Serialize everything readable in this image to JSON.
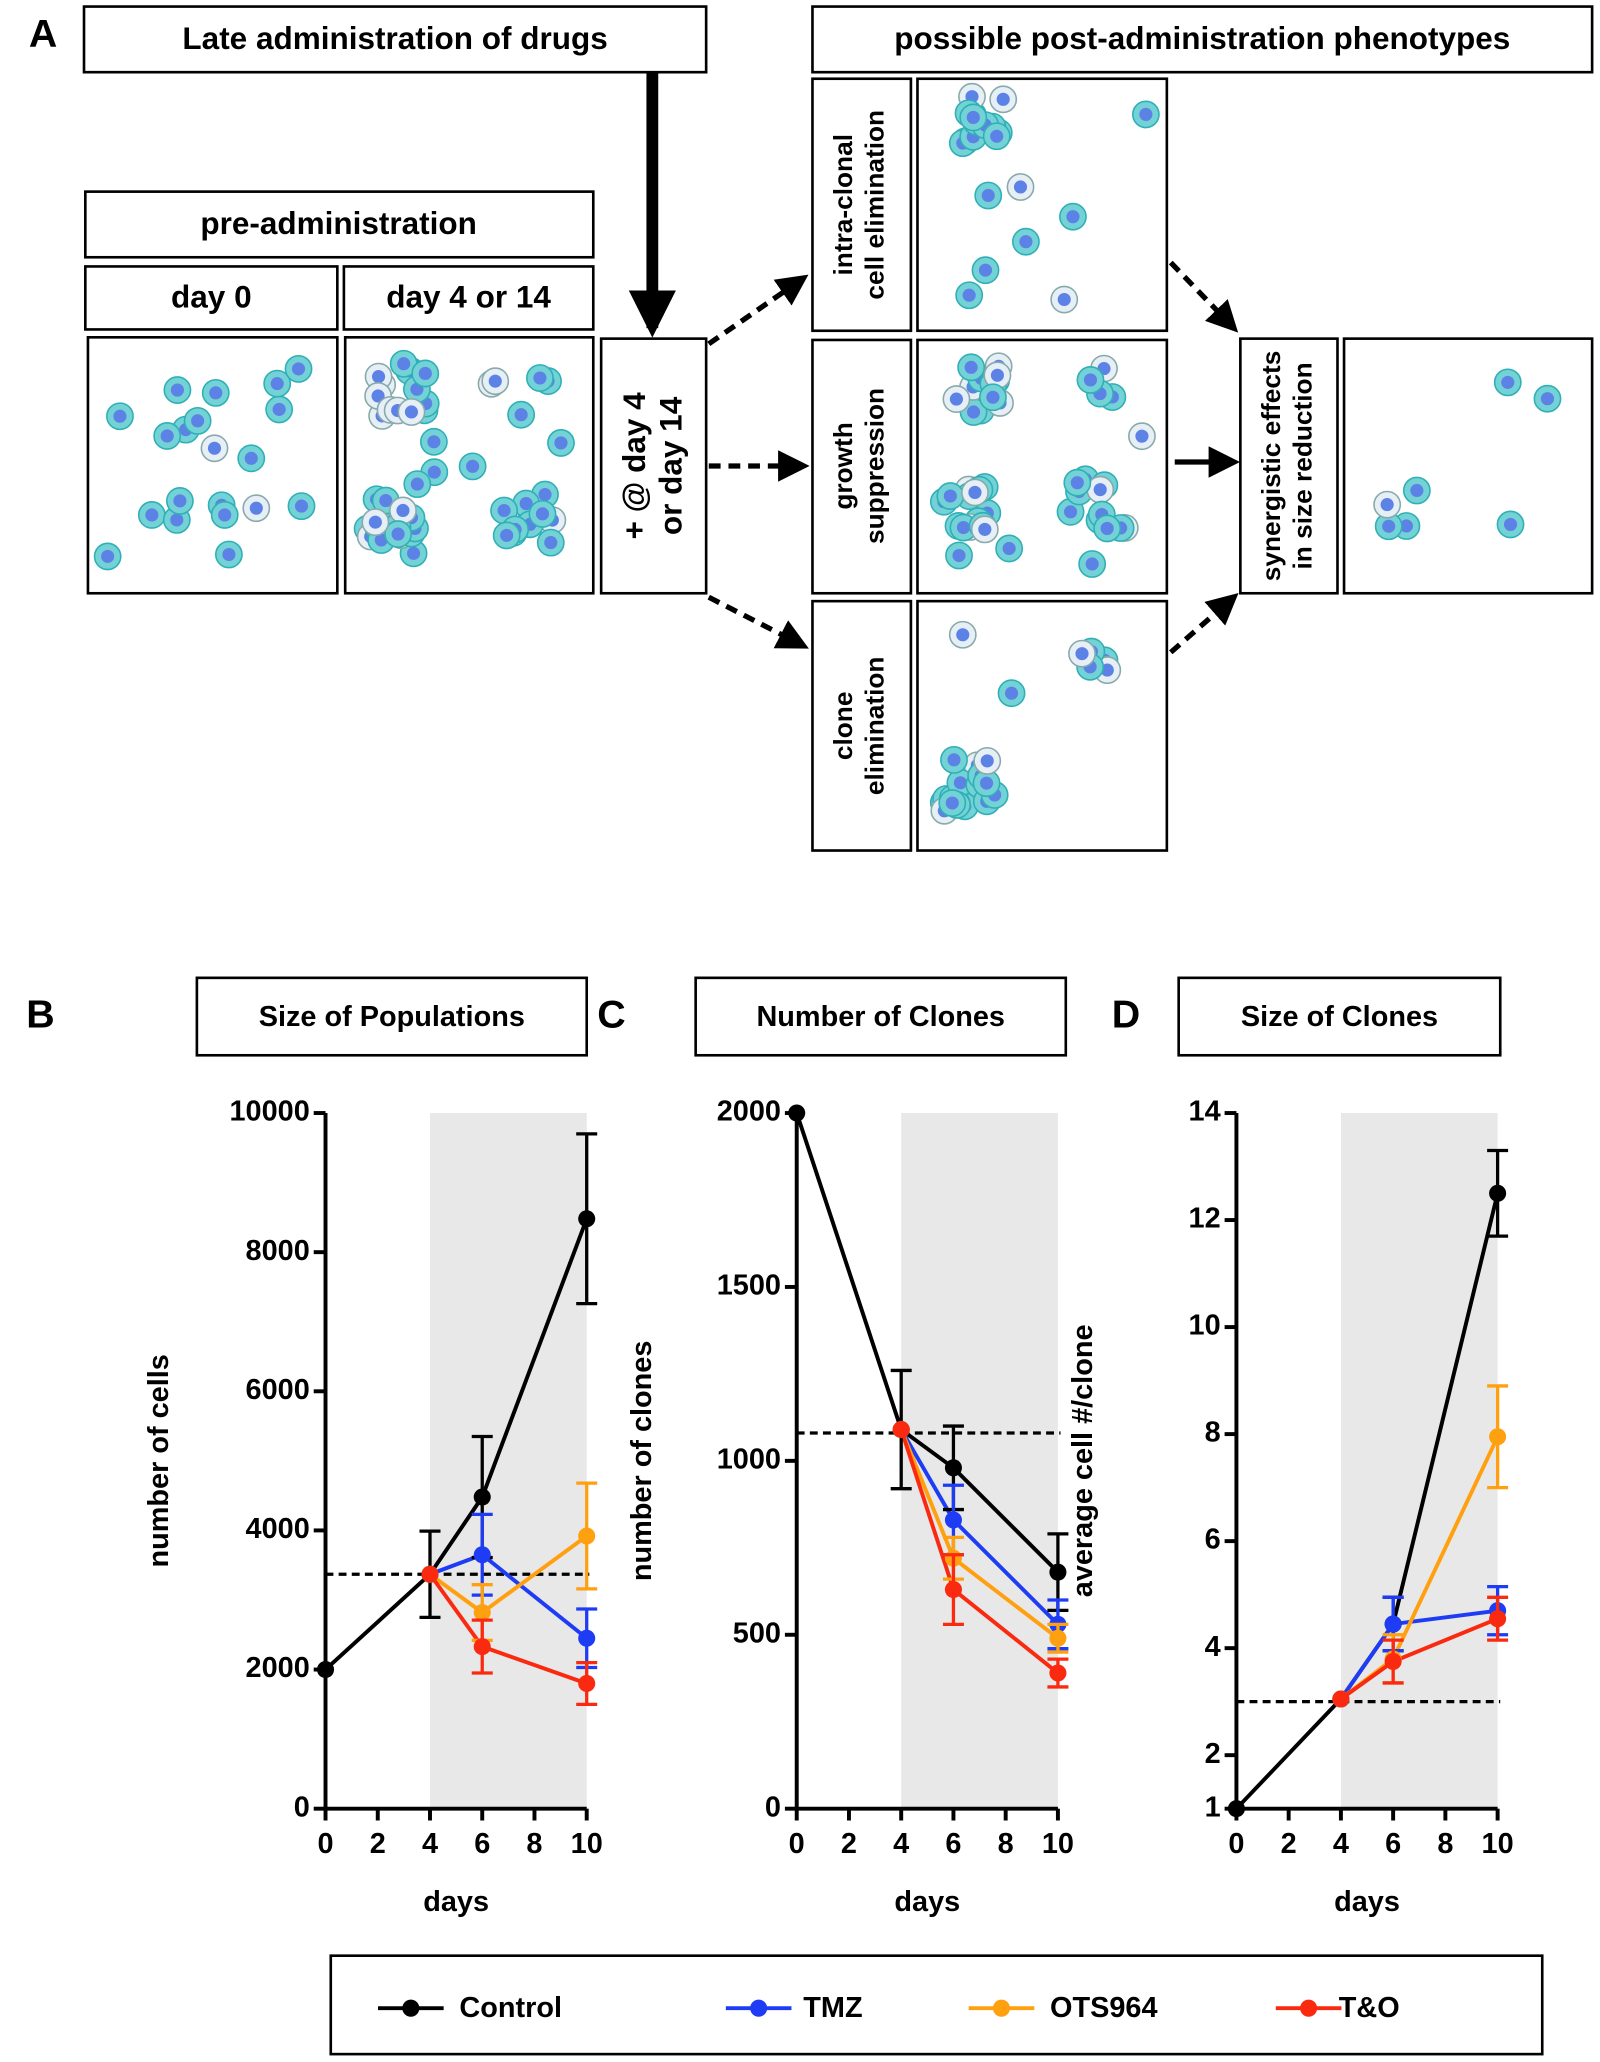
{
  "diagram": {
    "label": "A",
    "title": "Late administration of drugs",
    "phenotypes_title": "possible post-administration phenotypes",
    "pre_title": "pre-administration",
    "day0": "day 0",
    "day4": "day 4 or 14",
    "drug_box": [
      "+ @ day 4",
      "or day 14"
    ],
    "phenotypes": [
      [
        "intra-clonal",
        "cell elimination"
      ],
      [
        "growth",
        "suppression"
      ],
      [
        "clone",
        "elimination"
      ]
    ],
    "result": [
      "synergistic effects",
      "in size reduction"
    ]
  },
  "chart_data": [
    {
      "type": "line",
      "panel": "B",
      "title": "Size of Populations",
      "xlabel": "days",
      "ylabel": "number of  cells",
      "x": [
        0,
        4,
        6,
        10
      ],
      "xlim": [
        0,
        10
      ],
      "xticks": [
        0,
        2,
        4,
        6,
        8,
        10
      ],
      "ylim": [
        0,
        10000
      ],
      "yticks": [
        0,
        2000,
        4000,
        6000,
        8000,
        10000
      ],
      "shade": [
        4,
        10
      ],
      "reference_line": 3370,
      "series": [
        {
          "name": "Control",
          "color": "#000000",
          "values": [
            2000,
            3370,
            4480,
            8480
          ],
          "errors": [
            null,
            620,
            870,
            1220
          ]
        },
        {
          "name": "TMZ",
          "color": "#1f3cf5",
          "values": [
            null,
            3370,
            3650,
            2450
          ],
          "errors": [
            null,
            null,
            580,
            420
          ]
        },
        {
          "name": "OTS964",
          "color": "#ffa010",
          "values": [
            null,
            3370,
            2820,
            3920
          ],
          "errors": [
            null,
            null,
            400,
            760
          ]
        },
        {
          "name": "T&O",
          "color": "#fa2a10",
          "values": [
            null,
            3370,
            2330,
            1800
          ],
          "errors": [
            null,
            null,
            380,
            300
          ]
        }
      ]
    },
    {
      "type": "line",
      "panel": "C",
      "title": "Number of Clones",
      "xlabel": "days",
      "ylabel": "number of  clones",
      "x": [
        0,
        4,
        6,
        10
      ],
      "xlim": [
        0,
        10
      ],
      "xticks": [
        0,
        2,
        4,
        6,
        8,
        10
      ],
      "ylim": [
        0,
        2000
      ],
      "yticks": [
        0,
        500,
        1000,
        1500,
        2000
      ],
      "shade": [
        4,
        10
      ],
      "reference_line": 1080,
      "series": [
        {
          "color": "#000000",
          "values": [
            2000,
            1090,
            980,
            680
          ],
          "errors": [
            null,
            170,
            120,
            110
          ]
        },
        {
          "color": "#1f3cf5",
          "values": [
            null,
            1090,
            830,
            530
          ],
          "errors": [
            null,
            null,
            100,
            70
          ]
        },
        {
          "color": "#ffa010",
          "values": [
            null,
            1090,
            720,
            490
          ],
          "errors": [
            null,
            null,
            60,
            40
          ]
        },
        {
          "color": "#fa2a10",
          "values": [
            null,
            1090,
            630,
            390
          ],
          "errors": [
            null,
            null,
            100,
            40
          ]
        }
      ]
    },
    {
      "type": "line",
      "panel": "D",
      "title": "Size of Clones",
      "xlabel": "days",
      "ylabel": "average cell #/clone",
      "x": [
        0,
        4,
        6,
        10
      ],
      "xlim": [
        0,
        10
      ],
      "xticks": [
        0,
        2,
        4,
        6,
        8,
        10
      ],
      "ylim": [
        1,
        14
      ],
      "yticks": [
        1,
        2,
        4,
        6,
        8,
        10,
        12,
        14
      ],
      "shade": [
        4,
        10
      ],
      "reference_line": 3.0,
      "series": [
        {
          "color": "#000000",
          "values": [
            1,
            3.05,
            4.45,
            12.5
          ],
          "errors": [
            null,
            null,
            0.5,
            0.8
          ]
        },
        {
          "color": "#1f3cf5",
          "values": [
            null,
            3.05,
            4.45,
            4.7
          ],
          "errors": [
            null,
            null,
            0.5,
            0.45
          ]
        },
        {
          "color": "#ffa010",
          "values": [
            null,
            3.05,
            3.8,
            7.95
          ],
          "errors": [
            null,
            null,
            0.45,
            0.95
          ]
        },
        {
          "color": "#fa2a10",
          "values": [
            null,
            3.05,
            3.75,
            4.55
          ],
          "errors": [
            null,
            null,
            0.4,
            0.4
          ]
        }
      ]
    }
  ]
}
